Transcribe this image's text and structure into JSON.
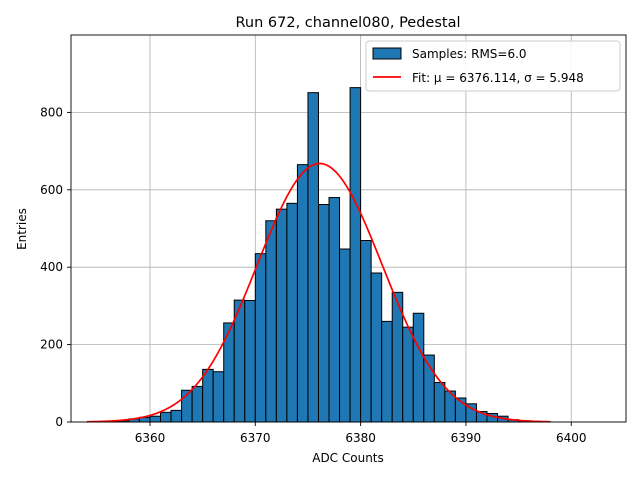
{
  "chart_data": {
    "type": "bar",
    "title": "Run 672, channel080, Pedestal",
    "xlabel": "ADC Counts",
    "ylabel": "Entries",
    "xlim": [
      6352.5,
      6405.2
    ],
    "ylim": [
      0,
      1000
    ],
    "xticks": [
      6360,
      6370,
      6380,
      6390,
      6400
    ],
    "yticks": [
      0,
      200,
      400,
      600,
      800
    ],
    "grid": true,
    "legend_position": "top-right",
    "legend": {
      "samples_label": "Samples: RMS=6.0",
      "fit_label": "Fit: μ = 6376.114, σ = 5.948"
    },
    "colors": {
      "bars": "#1f77b4",
      "bar_edge": "#000000",
      "fit": "#ff0000",
      "grid": "#b0b0b0"
    },
    "bin_width": 1,
    "bin_starts": [
      6356,
      6357,
      6358,
      6359,
      6360,
      6361,
      6362,
      6363,
      6364,
      6365,
      6366,
      6367,
      6368,
      6369,
      6370,
      6371,
      6372,
      6373,
      6374,
      6375,
      6376,
      6377,
      6378,
      6379,
      6380,
      6381,
      6382,
      6383,
      6384,
      6385,
      6386,
      6387,
      6388,
      6389,
      6390,
      6391,
      6392,
      6393,
      6394,
      6395,
      6396,
      6397
    ],
    "counts": [
      2,
      3,
      8,
      12,
      15,
      25,
      30,
      82,
      92,
      136,
      130,
      256,
      315,
      314,
      435,
      520,
      550,
      565,
      665,
      851,
      562,
      580,
      447,
      864,
      469,
      385,
      260,
      335,
      245,
      281,
      173,
      102,
      80,
      62,
      47,
      27,
      22,
      15,
      6,
      3,
      2,
      1
    ],
    "fit": {
      "mu": 6376.114,
      "sigma": 5.948,
      "amplitude": 668,
      "x_range": [
        6354,
        6398
      ]
    }
  }
}
